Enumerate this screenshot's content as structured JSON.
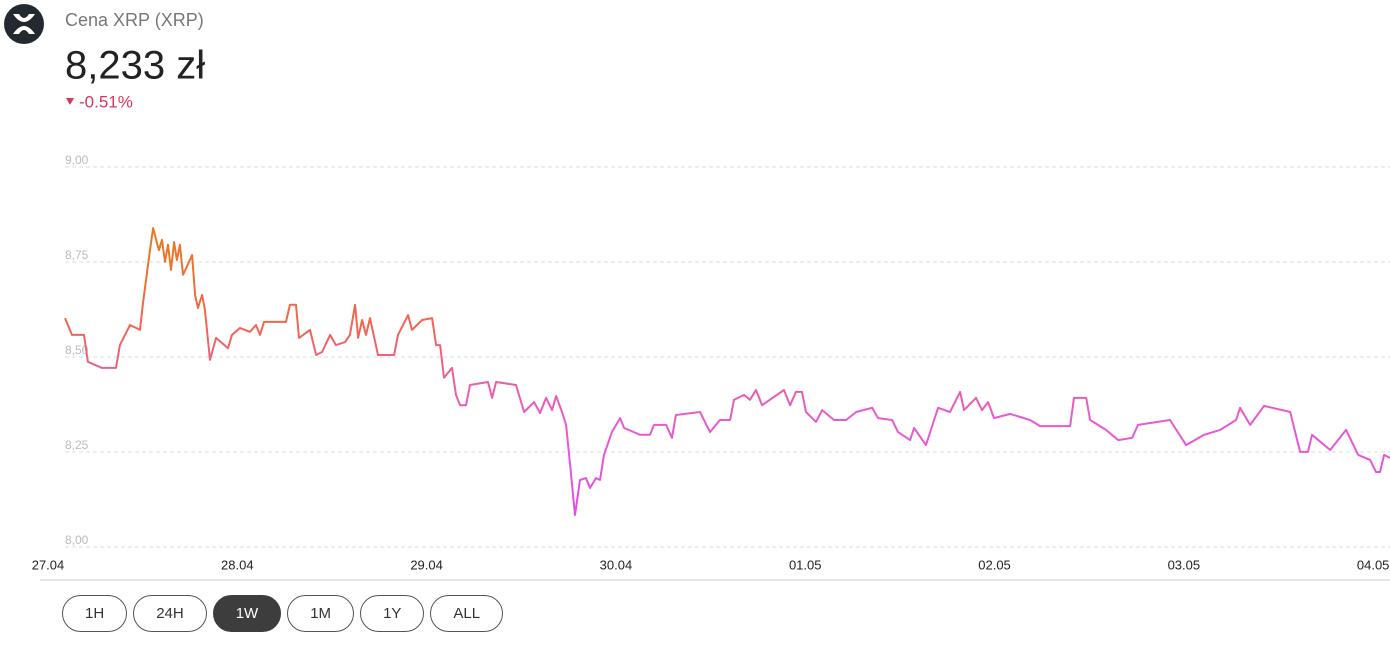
{
  "header": {
    "title": "Cena XRP (XRP)",
    "price": "8,233 zł",
    "change": "-0.51%"
  },
  "buttons": [
    "1H",
    "24H",
    "1W",
    "1M",
    "1Y",
    "ALL"
  ],
  "active_button": "1W",
  "chart_data": {
    "type": "line",
    "line_colors": [
      "#e97b1c",
      "#f2654f",
      "#e75bd0",
      "#e14ee8"
    ],
    "grid": true,
    "xlim": [
      0,
      7.089
    ],
    "xticks": [
      {
        "value": 0,
        "label": "27.04"
      },
      {
        "value": 1,
        "label": "28.04"
      },
      {
        "value": 2,
        "label": "29.04"
      },
      {
        "value": 3,
        "label": "30.04"
      },
      {
        "value": 4,
        "label": "01.05"
      },
      {
        "value": 5,
        "label": "02.05"
      },
      {
        "value": 6,
        "label": "03.05"
      },
      {
        "value": 7,
        "label": "04.05"
      }
    ],
    "ylim": [
      8.0,
      9.0
    ],
    "yticks": [
      {
        "value": 8.0,
        "label": "8,00"
      },
      {
        "value": 8.25,
        "label": "8,25"
      },
      {
        "value": 8.5,
        "label": "8,50"
      },
      {
        "value": 8.75,
        "label": "8,75"
      },
      {
        "value": 9.0,
        "label": "9,00"
      }
    ],
    "x": [
      0.09,
      0.127,
      0.19,
      0.211,
      0.285,
      0.359,
      0.38,
      0.433,
      0.486,
      0.502,
      0.539,
      0.555,
      0.586,
      0.602,
      0.618,
      0.634,
      0.65,
      0.666,
      0.681,
      0.697,
      0.713,
      0.745,
      0.761,
      0.777,
      0.792,
      0.814,
      0.829,
      0.856,
      0.888,
      0.951,
      0.972,
      1.014,
      1.067,
      1.099,
      1.12,
      1.141,
      1.257,
      1.278,
      1.31,
      1.326,
      1.384,
      1.416,
      1.448,
      1.49,
      1.521,
      1.569,
      1.595,
      1.622,
      1.638,
      1.659,
      1.68,
      1.701,
      1.743,
      1.828,
      1.849,
      1.902,
      1.923,
      1.976,
      2.029,
      2.05,
      2.071,
      2.092,
      2.134,
      2.155,
      2.177,
      2.208,
      2.229,
      2.324,
      2.346,
      2.367,
      2.472,
      2.515,
      2.568,
      2.599,
      2.631,
      2.663,
      2.684,
      2.715,
      2.737,
      2.758,
      2.784,
      2.81,
      2.842,
      2.863,
      2.895,
      2.916,
      2.937,
      2.979,
      3.022,
      3.043,
      3.127,
      3.18,
      3.201,
      3.265,
      3.296,
      3.317,
      3.444,
      3.497,
      3.55,
      3.603,
      3.624,
      3.677,
      3.708,
      3.74,
      3.772,
      3.888,
      3.92,
      3.951,
      3.983,
      4.004,
      4.057,
      4.089,
      4.152,
      4.216,
      4.269,
      4.353,
      4.385,
      4.459,
      4.49,
      4.554,
      4.575,
      4.638,
      4.681,
      4.702,
      4.765,
      4.818,
      4.839,
      4.902,
      4.934,
      4.966,
      4.997,
      5.082,
      5.188,
      5.24,
      5.399,
      5.42,
      5.484,
      5.505,
      5.589,
      5.653,
      5.727,
      5.758,
      5.927,
      6.012,
      6.107,
      6.192,
      6.276,
      6.297,
      6.35,
      6.424,
      6.562,
      6.614,
      6.656,
      6.677,
      6.773,
      6.857,
      6.921,
      6.984,
      7.015,
      7.036,
      7.058,
      7.089
    ],
    "values": [
      8.597,
      8.553,
      8.553,
      8.482,
      8.466,
      8.466,
      8.526,
      8.579,
      8.566,
      8.637,
      8.776,
      8.834,
      8.776,
      8.803,
      8.745,
      8.79,
      8.724,
      8.797,
      8.75,
      8.79,
      8.711,
      8.745,
      8.763,
      8.658,
      8.624,
      8.658,
      8.619,
      8.487,
      8.545,
      8.518,
      8.553,
      8.571,
      8.561,
      8.579,
      8.553,
      8.587,
      8.587,
      8.632,
      8.632,
      8.545,
      8.566,
      8.5,
      8.508,
      8.553,
      8.526,
      8.534,
      8.553,
      8.632,
      8.545,
      8.592,
      8.553,
      8.597,
      8.5,
      8.5,
      8.553,
      8.605,
      8.566,
      8.592,
      8.597,
      8.526,
      8.526,
      8.44,
      8.466,
      8.395,
      8.368,
      8.368,
      8.421,
      8.429,
      8.387,
      8.429,
      8.421,
      8.35,
      8.376,
      8.347,
      8.387,
      8.355,
      8.392,
      8.35,
      8.316,
      8.211,
      8.079,
      8.171,
      8.176,
      8.15,
      8.176,
      8.171,
      8.237,
      8.297,
      8.334,
      8.308,
      8.29,
      8.29,
      8.316,
      8.316,
      8.282,
      8.342,
      8.35,
      8.297,
      8.329,
      8.329,
      8.382,
      8.395,
      8.382,
      8.408,
      8.368,
      8.408,
      8.368,
      8.403,
      8.403,
      8.35,
      8.324,
      8.355,
      8.329,
      8.329,
      8.35,
      8.361,
      8.334,
      8.329,
      8.297,
      8.276,
      8.308,
      8.263,
      8.329,
      8.361,
      8.35,
      8.403,
      8.355,
      8.387,
      8.355,
      8.376,
      8.334,
      8.345,
      8.329,
      8.313,
      8.313,
      8.387,
      8.387,
      8.329,
      8.303,
      8.276,
      8.282,
      8.316,
      8.329,
      8.263,
      8.29,
      8.303,
      8.329,
      8.361,
      8.316,
      8.366,
      8.35,
      8.245,
      8.245,
      8.29,
      8.25,
      8.303,
      8.237,
      8.224,
      8.192,
      8.192,
      8.237,
      8.229
    ]
  }
}
